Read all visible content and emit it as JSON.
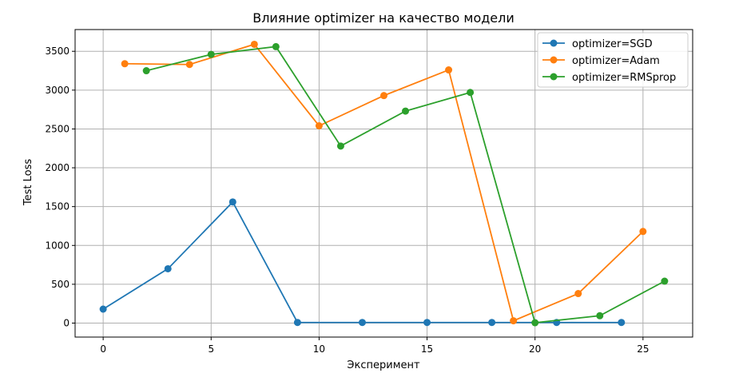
{
  "chart_data": {
    "type": "line",
    "title": "Влияние optimizer на качество модели",
    "xlabel": "Эксперимент",
    "ylabel": "Test Loss",
    "xlim": [
      -1.3,
      27.3
    ],
    "ylim": [
      -180,
      3780
    ],
    "xticks": [
      0,
      5,
      10,
      15,
      20,
      25
    ],
    "yticks": [
      0,
      500,
      1000,
      1500,
      2000,
      2500,
      3000,
      3500
    ],
    "grid": true,
    "legend_position": "top-right",
    "series": [
      {
        "name": "optimizer=SGD",
        "color": "#1f77b4",
        "x": [
          0,
          3,
          6,
          9,
          12,
          15,
          18,
          21,
          24
        ],
        "y": [
          180,
          700,
          1560,
          8,
          8,
          8,
          8,
          8,
          8
        ]
      },
      {
        "name": "optimizer=Adam",
        "color": "#ff7f0e",
        "x": [
          1,
          4,
          7,
          10,
          13,
          16,
          19,
          22,
          25
        ],
        "y": [
          3340,
          3330,
          3590,
          2540,
          2930,
          3260,
          30,
          380,
          1180
        ]
      },
      {
        "name": "optimizer=RMSprop",
        "color": "#2ca02c",
        "x": [
          2,
          5,
          8,
          11,
          14,
          17,
          20,
          23,
          26
        ],
        "y": [
          3250,
          3460,
          3560,
          2280,
          2730,
          2970,
          5,
          95,
          540
        ]
      }
    ]
  }
}
